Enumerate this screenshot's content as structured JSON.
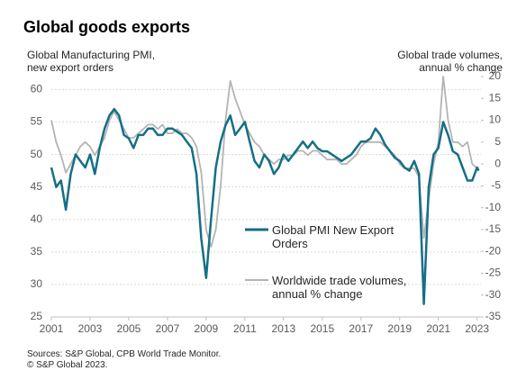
{
  "chart_data": {
    "type": "line",
    "title": "Global goods exports",
    "y_label": "Global Manufacturing PMI,\nnew export orders",
    "y2_label": "Global trade volumes,\nannual % change",
    "note": "Sources: S&P Global, CPB World Trade Monitor.\n© S&P Global 2023.",
    "x": [
      2001.0,
      2001.25,
      2001.5,
      2001.75,
      2002.0,
      2002.25,
      2002.5,
      2002.75,
      2003.0,
      2003.25,
      2003.5,
      2003.75,
      2004.0,
      2004.25,
      2004.5,
      2004.75,
      2005.0,
      2005.25,
      2005.5,
      2005.75,
      2006.0,
      2006.25,
      2006.5,
      2006.75,
      2007.0,
      2007.25,
      2007.5,
      2007.75,
      2008.0,
      2008.25,
      2008.5,
      2008.75,
      2009.0,
      2009.25,
      2009.5,
      2009.75,
      2010.0,
      2010.25,
      2010.5,
      2010.75,
      2011.0,
      2011.25,
      2011.5,
      2011.75,
      2012.0,
      2012.25,
      2012.5,
      2012.75,
      2013.0,
      2013.25,
      2013.5,
      2013.75,
      2014.0,
      2014.25,
      2014.5,
      2014.75,
      2015.0,
      2015.25,
      2015.5,
      2015.75,
      2016.0,
      2016.25,
      2016.5,
      2016.75,
      2017.0,
      2017.25,
      2017.5,
      2017.75,
      2018.0,
      2018.25,
      2018.5,
      2018.75,
      2019.0,
      2019.25,
      2019.5,
      2019.75,
      2020.0,
      2020.25,
      2020.5,
      2020.75,
      2021.0,
      2021.25,
      2021.5,
      2021.75,
      2022.0,
      2022.25,
      2022.5,
      2022.75,
      2023.0,
      2023.08
    ],
    "series": [
      {
        "name": "Global PMI New Export\nOrders",
        "color": "#156f86",
        "axis": "y",
        "values": [
          48,
          45,
          46,
          41.5,
          47,
          50,
          49,
          48,
          50,
          47,
          51,
          54,
          56,
          57,
          56,
          53,
          52.5,
          51,
          53,
          53,
          54,
          54,
          53,
          53,
          54,
          54,
          53.5,
          53,
          52,
          51,
          47,
          37,
          31,
          40,
          48,
          52,
          54.5,
          56,
          53,
          54,
          55,
          52,
          49,
          48,
          50,
          49,
          47,
          48,
          50,
          49,
          50,
          51,
          52,
          51,
          52,
          51,
          50.5,
          50.5,
          50,
          49.5,
          49,
          49.5,
          50,
          51,
          52,
          52,
          52.5,
          54,
          53,
          51.5,
          50.5,
          49.5,
          49,
          48,
          47.5,
          49,
          47,
          27,
          45,
          50,
          51,
          55,
          53,
          50.5,
          50,
          48,
          46,
          46,
          48,
          47.5
        ]
      },
      {
        "name": "Worldwide trade volumes,\nannual % change",
        "color": "#b4b4b4",
        "axis": "y2",
        "values": [
          10,
          5,
          2,
          -2,
          0,
          2,
          4,
          5,
          4,
          2,
          4,
          6,
          10,
          12,
          10,
          8,
          6,
          6,
          7,
          8,
          9,
          9,
          8,
          9,
          7,
          7,
          8,
          7,
          7,
          6,
          4,
          -2,
          -15,
          -19,
          -15,
          -5,
          10,
          19,
          15,
          12,
          9,
          7,
          5,
          4,
          2,
          1,
          0,
          1,
          1,
          2,
          2,
          3,
          3,
          2,
          3,
          3,
          2,
          1,
          1,
          1,
          0,
          0,
          1,
          2,
          4,
          5,
          5,
          5,
          5,
          4,
          3,
          2,
          0,
          -1,
          -1,
          -1,
          -3,
          -17,
          -8,
          0,
          5,
          20,
          10,
          5,
          5,
          4,
          5,
          0,
          -1,
          -1
        ]
      }
    ],
    "xlim": [
      2001,
      2023.2
    ],
    "xticks": [
      2001,
      2003,
      2005,
      2007,
      2009,
      2011,
      2013,
      2015,
      2017,
      2019,
      2021,
      2023
    ],
    "ylim": [
      25,
      62
    ],
    "yticks": [
      25,
      30,
      35,
      40,
      45,
      50,
      55,
      60
    ],
    "y2lim": [
      -35,
      20
    ],
    "y2ticks": [
      -35,
      -30,
      -25,
      -20,
      -15,
      -10,
      -5,
      0,
      5,
      10,
      15,
      20
    ],
    "grid": true
  }
}
